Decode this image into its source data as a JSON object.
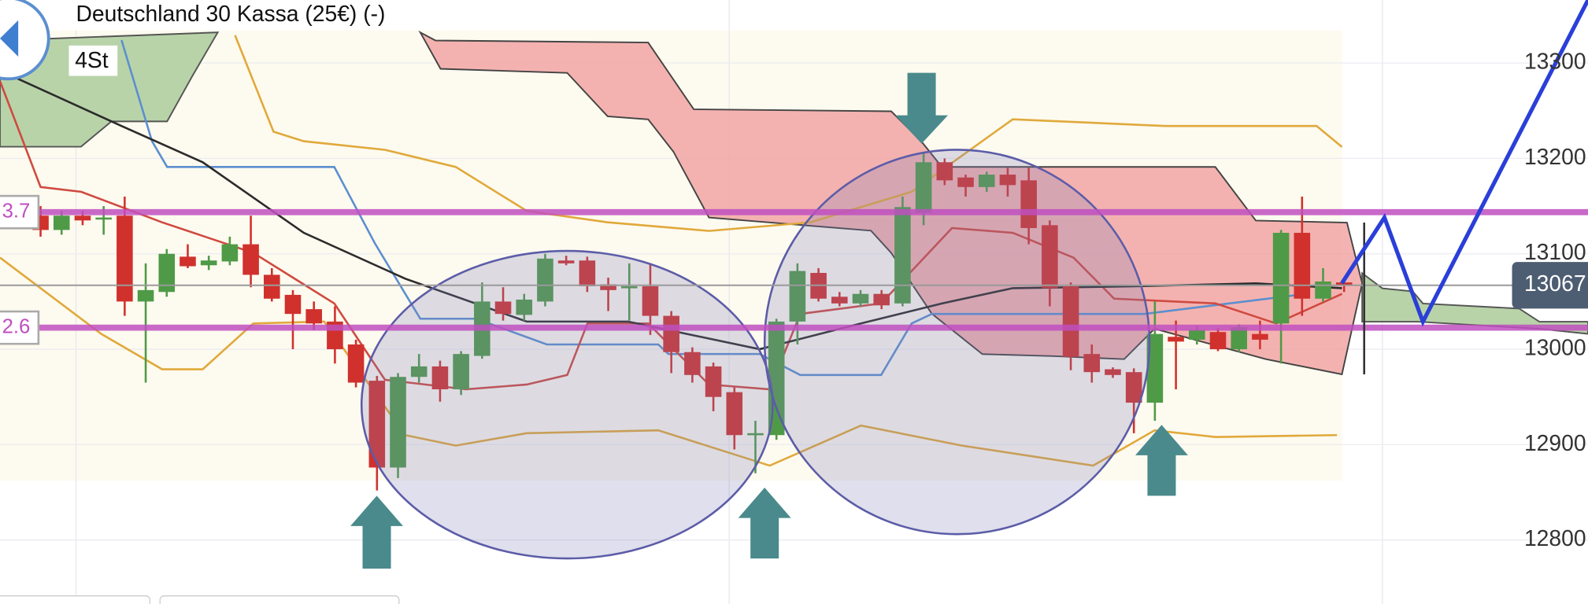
{
  "chart_data": {
    "type": "candlestick",
    "title": "Deutschland 30 Kassa (25€) (-)",
    "timeframe": "4St",
    "ylim": [
      12733,
      13366
    ],
    "yticks": [
      12800,
      12900,
      13000,
      13100,
      13200,
      13300
    ],
    "xlim": [
      -1.93,
      73.6
    ],
    "grid": true,
    "up_color": "#4f9a47",
    "down_color": "#d0312d",
    "open": [
      13140,
      13125,
      13140,
      13137,
      13140,
      13050,
      13060,
      13097,
      13088,
      13092,
      13110,
      13078,
      13057,
      13042,
      13029,
      13005,
      12967,
      12876,
      12971,
      12982,
      12958,
      12993,
      13050,
      13036,
      13050,
      13093,
      13093,
      13068,
      13064,
      13066,
      13035,
      12997,
      12982,
      12955,
      12910,
      12910,
      13029,
      13080,
      13055,
      13048,
      13058,
      13048,
      13143,
      13196,
      13180,
      13170,
      13183,
      13177,
      13130,
      13066,
      12995,
      12979,
      12976,
      12944,
      13013,
      13010,
      13018,
      13000,
      13016,
      13027,
      13122,
      13053,
      13070
    ],
    "high": [
      13150,
      13145,
      13145,
      13150,
      13160,
      13090,
      13105,
      13110,
      13098,
      13118,
      13140,
      13085,
      13062,
      13050,
      13045,
      13010,
      12972,
      12975,
      12995,
      12988,
      12998,
      13070,
      13065,
      13058,
      13100,
      13098,
      13097,
      13075,
      13090,
      13090,
      13040,
      13002,
      12986,
      12960,
      12925,
      13032,
      13090,
      13085,
      13060,
      13062,
      13062,
      13160,
      13205,
      13200,
      13183,
      13186,
      13190,
      13190,
      13135,
      13070,
      13005,
      12981,
      12980,
      13050,
      13030,
      13024,
      13022,
      13026,
      13030,
      13125,
      13160,
      13085,
      13074
    ],
    "low": [
      13118,
      13120,
      13130,
      13120,
      13035,
      12965,
      13055,
      13085,
      13083,
      13088,
      13065,
      13050,
      13000,
      13020,
      12985,
      12960,
      12852,
      12865,
      12965,
      12945,
      12952,
      12990,
      13030,
      13030,
      13045,
      13088,
      13060,
      13040,
      13030,
      13015,
      12975,
      12965,
      12935,
      12895,
      12870,
      12905,
      13005,
      13050,
      13045,
      13045,
      13042,
      13045,
      13130,
      13172,
      13160,
      13165,
      13160,
      13110,
      13045,
      12978,
      12965,
      12970,
      12912,
      12925,
      12958,
      13005,
      12998,
      12997,
      13000,
      12985,
      13035,
      13050,
      13060
    ],
    "close": [
      13125,
      13140,
      13135,
      13138,
      13050,
      13062,
      13100,
      13087,
      13093,
      13110,
      13078,
      13053,
      13037,
      13027,
      13000,
      12965,
      12876,
      12971,
      12982,
      12958,
      12995,
      13050,
      13037,
      13052,
      13095,
      13090,
      13066,
      13062,
      13066,
      13035,
      12997,
      12973,
      12950,
      12910,
      12912,
      13029,
      13082,
      13053,
      13048,
      13058,
      13046,
      13149,
      13196,
      13177,
      13170,
      13183,
      13172,
      13127,
      13064,
      12992,
      12976,
      12973,
      12944,
      13016,
      13008,
      13020,
      13000,
      13023,
      13010,
      13122,
      13053,
      13071,
      13067
    ],
    "lines": [
      {
        "color": "#e0a93a",
        "x": [
          9.25,
          11.08,
          12.52,
          16.38,
          19.75,
          23.12,
          26.97,
          31.79,
          36.61,
          41.43,
          46.24,
          53.47,
          58.29,
          60.69,
          61.9
        ],
        "values": [
          13329,
          13228,
          13218,
          13209,
          13191,
          13145,
          13133,
          13124,
          13133,
          13165,
          13241,
          13234,
          13234,
          13234,
          13212
        ]
      },
      {
        "color": "#e0a93a",
        "x": [
          -1.93,
          2.89,
          5.78,
          7.71,
          10.12,
          13.49,
          17.34,
          19.75,
          23.12,
          29.38,
          34.68,
          39.02,
          43.83,
          50.06,
          52.99,
          55.88,
          61.66
        ],
        "values": [
          13096,
          13016,
          12979,
          12979,
          13027,
          13029,
          12910,
          12899,
          12912,
          12915,
          12878,
          12920,
          12899,
          12878,
          12915,
          12908,
          12910
        ]
      },
      {
        "color": "#5b8fcf",
        "x": [
          3.85,
          5.3,
          6.02,
          13.97,
          15.9,
          18.06,
          20.71,
          24.08,
          29.38,
          29.86,
          34.2,
          36.13,
          39.98,
          41.43,
          42.39,
          52.5,
          60.21
        ],
        "values": [
          13324,
          13218,
          13191,
          13191,
          13111,
          13032,
          13032,
          13005,
          13005,
          12995,
          12995,
          12973,
          12973,
          13027,
          13037,
          13037,
          13058
        ]
      },
      {
        "color": "#cf4a40",
        "x": [
          -1.93,
          0,
          1.93,
          5.78,
          10.12,
          13.97,
          16.38,
          20.23,
          23.12,
          25.05,
          26.01,
          28.9,
          31.79,
          34.68,
          36.13,
          39.98,
          43.35,
          46.24,
          49.13,
          51.06,
          55.88,
          58.77,
          61.9
        ],
        "values": [
          13281,
          13170,
          13165,
          13133,
          13101,
          13048,
          12968,
          12958,
          12963,
          12973,
          13027,
          13027,
          12963,
          12958,
          13037,
          13048,
          13127,
          13122,
          13096,
          13053,
          13048,
          13027,
          13058
        ]
      },
      {
        "color": "#2b2b2b",
        "x": [
          -1.93,
          3.85,
          7.71,
          12.52,
          17.34,
          23.12,
          27.94,
          34.2,
          39.02,
          42.87,
          46.24,
          52.02,
          57.8,
          61.9
        ],
        "values": [
          13292,
          13234,
          13196,
          13122,
          13074,
          13029,
          13029,
          13000,
          13027,
          13048,
          13064,
          13066,
          13069,
          13064
        ]
      }
    ],
    "levels": [
      {
        "value": 13143.7,
        "label": "3.7"
      },
      {
        "value": 13022.6,
        "label": "2.6"
      }
    ],
    "level_color": "#c04fc0",
    "last_price": 13067
  }
}
